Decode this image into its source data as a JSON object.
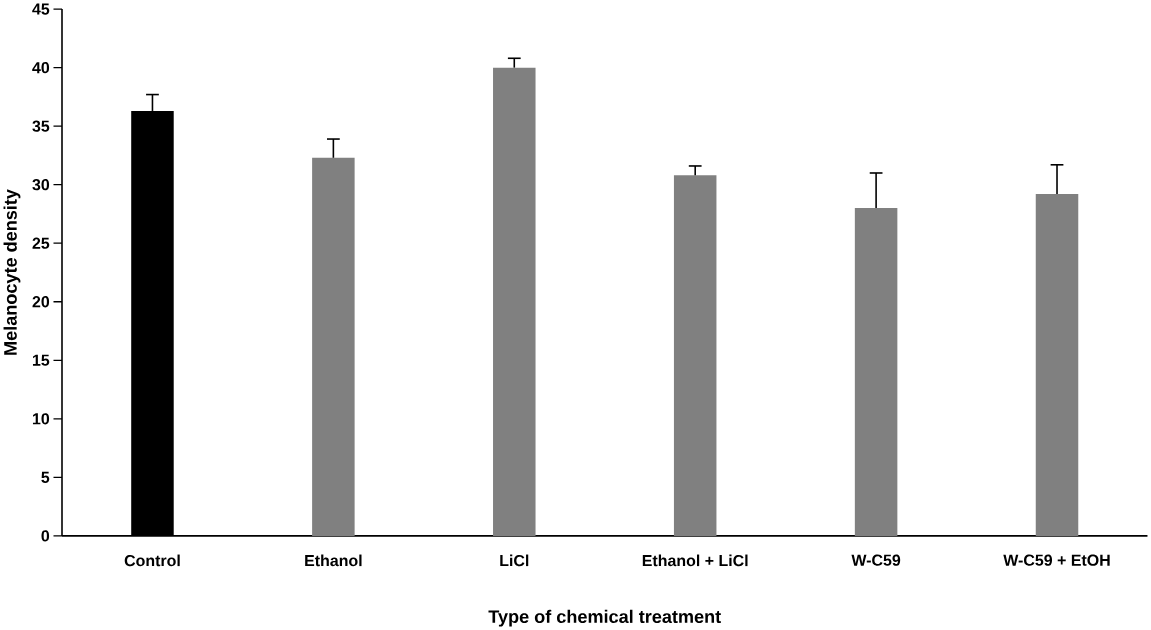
{
  "chart_data": {
    "type": "bar",
    "xlabel": "Type of chemical treatment",
    "ylabel": "Melanocyte density",
    "categories": [
      "Control",
      "Ethanol",
      "LiCl",
      "Ethanol + LiCl",
      "W-C59",
      "W-C59 + EtOH"
    ],
    "values": [
      36.3,
      32.3,
      40.0,
      30.8,
      28.0,
      29.2
    ],
    "errors": [
      [
        36.3,
        37.7
      ],
      [
        32.3,
        33.9
      ],
      [
        40.0,
        40.8
      ],
      [
        30.8,
        31.6
      ],
      [
        28.0,
        31.0
      ],
      [
        29.2,
        31.7
      ]
    ],
    "colors": [
      "#000000",
      "#808080",
      "#808080",
      "#808080",
      "#808080",
      "#808080"
    ],
    "ylim": [
      0,
      45
    ],
    "yticks": [
      0,
      5,
      10,
      15,
      20,
      25,
      30,
      35,
      40,
      45
    ],
    "grid": false
  }
}
